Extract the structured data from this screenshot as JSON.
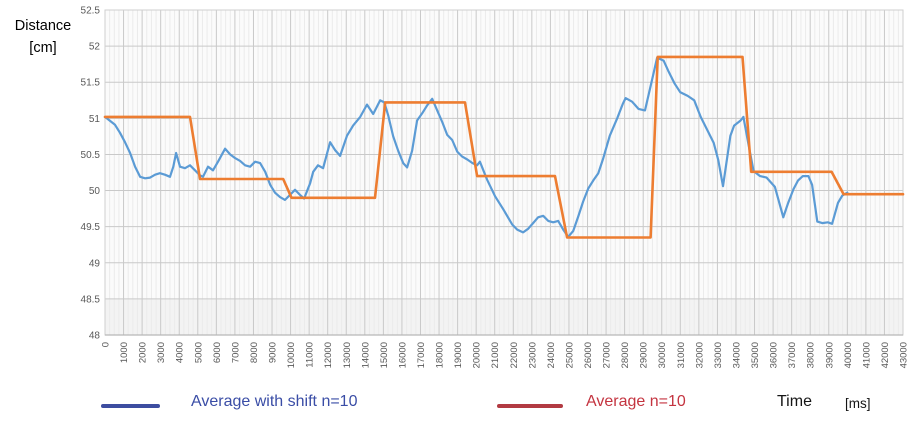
{
  "y_axis": {
    "title_line1": "Distance",
    "title_line2": "[cm]",
    "tick_labels": [
      "48",
      "48.5",
      "49",
      "49.5",
      "50",
      "50.5",
      "51",
      "51.5",
      "52",
      "52.5"
    ]
  },
  "x_axis": {
    "title": "Time",
    "unit": "[ms]",
    "tick_labels": [
      "0",
      "1000",
      "2000",
      "3000",
      "4000",
      "5000",
      "6000",
      "7000",
      "8000",
      "9000",
      "10000",
      "11000",
      "12000",
      "13000",
      "14000",
      "15000",
      "16000",
      "17000",
      "18000",
      "19000",
      "20000",
      "21000",
      "22000",
      "23000",
      "24000",
      "25000",
      "26000",
      "27000",
      "28000",
      "29000",
      "30000",
      "31000",
      "32000",
      "33000",
      "34000",
      "35000",
      "36000",
      "37000",
      "38000",
      "39000",
      "40000",
      "41000",
      "42000",
      "43000"
    ]
  },
  "legend": [
    {
      "label": "Average with shift n=10",
      "swatch_color": "#3d4da0",
      "label_color": "#3a4da6"
    },
    {
      "label": "Average n=10",
      "swatch_color": "#b23a42",
      "label_color": "#c43440"
    }
  ],
  "colors": {
    "series_blue": "#5b9bd5",
    "series_orange": "#ed7d31",
    "grid_major": "#c9c9c9",
    "grid_minor": "#ebebeb",
    "axis_line": "#b7b7b7",
    "tick_text": "#595959",
    "plot_bg": "#fbfbfb"
  },
  "chart_data": {
    "type": "line",
    "title": "",
    "xlabel": "Time [ms]",
    "ylabel": "Distance [cm]",
    "xlim": [
      0,
      43000
    ],
    "ylim": [
      48,
      52.5
    ],
    "x_major_step": 1000,
    "x_minor_step": 250,
    "y_major_step": 0.5,
    "grid": true,
    "legend_position": "bottom",
    "series": [
      {
        "name": "Average with shift n=10",
        "color": "#5b9bd5",
        "width": 2.2,
        "points": [
          [
            0,
            51.02
          ],
          [
            540,
            50.91
          ],
          [
            810,
            50.8
          ],
          [
            1080,
            50.67
          ],
          [
            1350,
            50.52
          ],
          [
            1620,
            50.33
          ],
          [
            1890,
            50.19
          ],
          [
            2160,
            50.17
          ],
          [
            2430,
            50.18
          ],
          [
            2700,
            50.22
          ],
          [
            2960,
            50.24
          ],
          [
            3230,
            50.22
          ],
          [
            3500,
            50.19
          ],
          [
            3680,
            50.33
          ],
          [
            3830,
            50.52
          ],
          [
            4040,
            50.33
          ],
          [
            4310,
            50.31
          ],
          [
            4580,
            50.35
          ],
          [
            4850,
            50.28
          ],
          [
            5120,
            50.21
          ],
          [
            5280,
            50.19
          ],
          [
            5550,
            50.33
          ],
          [
            5820,
            50.28
          ],
          [
            6090,
            50.4
          ],
          [
            6470,
            50.58
          ],
          [
            6740,
            50.5
          ],
          [
            7010,
            50.45
          ],
          [
            7280,
            50.41
          ],
          [
            7550,
            50.35
          ],
          [
            7820,
            50.33
          ],
          [
            8090,
            50.4
          ],
          [
            8360,
            50.38
          ],
          [
            8630,
            50.26
          ],
          [
            8900,
            50.08
          ],
          [
            9160,
            49.97
          ],
          [
            9430,
            49.91
          ],
          [
            9700,
            49.87
          ],
          [
            9970,
            49.94
          ],
          [
            10240,
            50.01
          ],
          [
            10510,
            49.94
          ],
          [
            10730,
            49.89
          ],
          [
            11050,
            50.1
          ],
          [
            11220,
            50.26
          ],
          [
            11480,
            50.35
          ],
          [
            11750,
            50.31
          ],
          [
            12130,
            50.67
          ],
          [
            12400,
            50.56
          ],
          [
            12670,
            50.48
          ],
          [
            13040,
            50.76
          ],
          [
            13370,
            50.9
          ],
          [
            13750,
            51.02
          ],
          [
            14120,
            51.19
          ],
          [
            14450,
            51.06
          ],
          [
            14830,
            51.25
          ],
          [
            15050,
            51.22
          ],
          [
            15260,
            51.04
          ],
          [
            15530,
            50.75
          ],
          [
            15800,
            50.55
          ],
          [
            16070,
            50.38
          ],
          [
            16280,
            50.32
          ],
          [
            16550,
            50.55
          ],
          [
            16820,
            50.97
          ],
          [
            17090,
            51.07
          ],
          [
            17360,
            51.18
          ],
          [
            17630,
            51.27
          ],
          [
            17900,
            51.11
          ],
          [
            18170,
            50.95
          ],
          [
            18440,
            50.77
          ],
          [
            18710,
            50.7
          ],
          [
            18980,
            50.54
          ],
          [
            19250,
            50.47
          ],
          [
            19520,
            50.43
          ],
          [
            19800,
            50.38
          ],
          [
            20050,
            50.35
          ],
          [
            20200,
            50.4
          ],
          [
            20590,
            50.15
          ],
          [
            21020,
            49.92
          ],
          [
            21460,
            49.74
          ],
          [
            21940,
            49.53
          ],
          [
            22210,
            49.46
          ],
          [
            22530,
            49.42
          ],
          [
            22800,
            49.47
          ],
          [
            23070,
            49.55
          ],
          [
            23340,
            49.63
          ],
          [
            23610,
            49.65
          ],
          [
            23880,
            49.58
          ],
          [
            24150,
            49.56
          ],
          [
            24420,
            49.58
          ],
          [
            24690,
            49.46
          ],
          [
            24960,
            49.36
          ],
          [
            25230,
            49.44
          ],
          [
            25500,
            49.64
          ],
          [
            25770,
            49.85
          ],
          [
            26040,
            50.03
          ],
          [
            26310,
            50.14
          ],
          [
            26580,
            50.24
          ],
          [
            26850,
            50.45
          ],
          [
            27200,
            50.76
          ],
          [
            27600,
            51.0
          ],
          [
            27900,
            51.2
          ],
          [
            28050,
            51.28
          ],
          [
            28400,
            51.23
          ],
          [
            28750,
            51.13
          ],
          [
            29100,
            51.11
          ],
          [
            29500,
            51.56
          ],
          [
            29750,
            51.84
          ],
          [
            30100,
            51.8
          ],
          [
            30350,
            51.66
          ],
          [
            30700,
            51.48
          ],
          [
            31000,
            51.36
          ],
          [
            31400,
            51.31
          ],
          [
            31750,
            51.25
          ],
          [
            32100,
            51.02
          ],
          [
            32450,
            50.84
          ],
          [
            32800,
            50.66
          ],
          [
            33050,
            50.42
          ],
          [
            33300,
            50.06
          ],
          [
            33700,
            50.76
          ],
          [
            33900,
            50.9
          ],
          [
            34250,
            50.97
          ],
          [
            34400,
            51.02
          ],
          [
            34700,
            50.6
          ],
          [
            34950,
            50.27
          ],
          [
            35300,
            50.2
          ],
          [
            35650,
            50.18
          ],
          [
            36100,
            50.05
          ],
          [
            36400,
            49.77
          ],
          [
            36550,
            49.63
          ],
          [
            36800,
            49.82
          ],
          [
            37100,
            50.02
          ],
          [
            37350,
            50.14
          ],
          [
            37600,
            50.2
          ],
          [
            37900,
            50.2
          ],
          [
            38100,
            50.08
          ],
          [
            38380,
            49.57
          ],
          [
            38650,
            49.55
          ],
          [
            38950,
            49.56
          ],
          [
            39180,
            49.54
          ],
          [
            39500,
            49.83
          ],
          [
            39730,
            49.93
          ],
          [
            40000,
            49.97
          ]
        ]
      },
      {
        "name": "Average n=10",
        "color": "#ed7d31",
        "width": 2.6,
        "points": [
          [
            0,
            51.02
          ],
          [
            4580,
            51.02
          ],
          [
            5120,
            50.16
          ],
          [
            9600,
            50.16
          ],
          [
            10050,
            49.9
          ],
          [
            14550,
            49.9
          ],
          [
            15100,
            51.22
          ],
          [
            19400,
            51.22
          ],
          [
            20050,
            50.2
          ],
          [
            24250,
            50.2
          ],
          [
            24900,
            49.35
          ],
          [
            29400,
            49.35
          ],
          [
            29780,
            51.85
          ],
          [
            34350,
            51.85
          ],
          [
            34820,
            50.26
          ],
          [
            39150,
            50.26
          ],
          [
            39800,
            49.95
          ],
          [
            43000,
            49.95
          ]
        ]
      }
    ]
  }
}
